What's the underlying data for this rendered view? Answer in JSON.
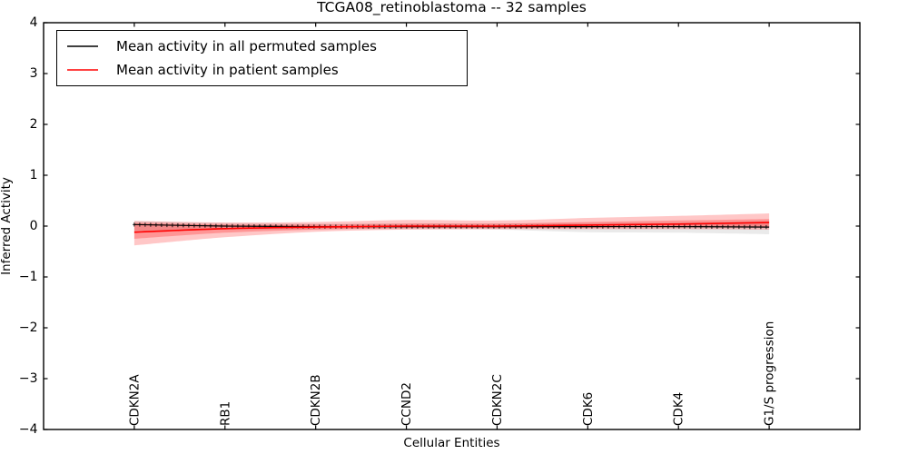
{
  "title": "TCGA08_retinoblastoma -- 32 samples",
  "colors": {
    "permuted_line": "#000000",
    "patient_line": "#ff0000",
    "permuted_band": "#888888",
    "patient_band": "#ff0000",
    "axis": "#000000",
    "background": "#ffffff"
  },
  "chart_data": {
    "type": "line",
    "title": "TCGA08_retinoblastoma -- 32 samples",
    "xlabel": "Cellular Entities",
    "ylabel": "Inferred Activity",
    "xlim": [
      0,
      9
    ],
    "ylim": [
      -4,
      4
    ],
    "grid": false,
    "ytick_values": [
      4,
      3,
      2,
      1,
      0,
      -1,
      -2,
      -3,
      -4
    ],
    "ytick_labels": [
      "4",
      "3",
      "2",
      "1",
      "0",
      "−1",
      "−2",
      "−3",
      "−4"
    ],
    "categories": [
      "CDKN2A",
      "RB1",
      "CDKN2B",
      "CCND2",
      "CDKN2C",
      "CDK6",
      "CDK4",
      "G1/S progression"
    ],
    "category_positions": [
      1,
      2,
      3,
      4,
      5,
      6,
      7,
      8
    ],
    "legend": {
      "position": "upper left"
    },
    "series": [
      {
        "name": "Mean activity in all permuted samples",
        "color": "#000000",
        "marker": "plus",
        "values": [
          0.03,
          0.0,
          -0.01,
          -0.01,
          -0.01,
          -0.01,
          -0.01,
          -0.02
        ],
        "band_upper": [
          0.1,
          0.06,
          0.05,
          0.05,
          0.05,
          0.06,
          0.07,
          0.1
        ],
        "band_lower": [
          -0.1,
          -0.07,
          -0.06,
          -0.06,
          -0.07,
          -0.12,
          -0.13,
          -0.16
        ],
        "band_color": "#888888",
        "band_opacity": 0.18
      },
      {
        "name": "Mean activity in patient samples",
        "color": "#ff0000",
        "marker": "none",
        "values": [
          -0.12,
          -0.05,
          -0.02,
          0.0,
          0.0,
          0.02,
          0.04,
          0.07
        ],
        "band_upper": [
          0.1,
          0.07,
          0.08,
          0.12,
          0.11,
          0.16,
          0.2,
          0.25
        ],
        "band_lower": [
          -0.38,
          -0.22,
          -0.11,
          -0.07,
          -0.06,
          -0.06,
          -0.06,
          -0.07
        ],
        "inner_band_upper": [
          0.06,
          0.03,
          0.03,
          0.05,
          0.05,
          0.08,
          0.11,
          0.14
        ],
        "inner_band_lower": [
          -0.25,
          -0.13,
          -0.07,
          -0.04,
          -0.04,
          -0.03,
          -0.02,
          -0.02
        ],
        "band_color": "#ff0000",
        "band_opacity": 0.22,
        "inner_band_opacity": 0.25
      }
    ]
  }
}
